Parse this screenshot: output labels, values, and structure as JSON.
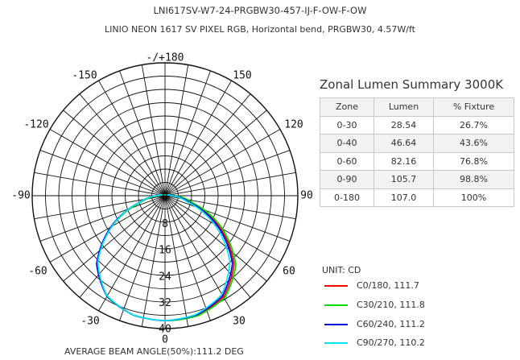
{
  "header": {
    "line1": "LNI617SV-W7-24-PRGBW30-457-IJ-F-OW-F-OW",
    "line2": "LINIO NEON 1617 SV PIXEL RGB, Horizontal bend, PRGBW30, 4.57W/ft"
  },
  "chart_data": [
    {
      "type": "polar",
      "angular_tick_labels": [
        "-/+180",
        "150",
        "120",
        "90",
        "60",
        "30",
        "0",
        "-30",
        "-60",
        "-90",
        "-120",
        "-150"
      ],
      "radial_tick_labels": [
        "0",
        "8",
        "16",
        "24",
        "32",
        "40"
      ],
      "radial_range": [
        0,
        40
      ],
      "unit": "UNIT: CD",
      "footer": "AVERAGE BEAM ANGLE(50%):111.2 DEG",
      "series": [
        {
          "name": "C0/180, 111.7",
          "color": "#ff0000",
          "shift": 0.8,
          "theta": [
            -120,
            -105,
            -90,
            -75,
            -60,
            -45,
            -30,
            -15,
            0,
            15,
            30,
            45,
            60,
            75,
            90,
            105,
            120
          ],
          "r": [
            0,
            0.5,
            2,
            7.5,
            18.5,
            29,
            35,
            37.2,
            37.6,
            37.2,
            35,
            29,
            18.5,
            7.5,
            2,
            0.5,
            0
          ]
        },
        {
          "name": "C30/210, 111.8",
          "color": "#00dd00",
          "shift": 1.6,
          "theta": [
            -120,
            -105,
            -90,
            -75,
            -60,
            -45,
            -30,
            -15,
            0,
            15,
            30,
            45,
            60,
            75,
            90,
            105,
            120
          ],
          "r": [
            0,
            0.5,
            2,
            7.8,
            19,
            29.5,
            35.3,
            37.3,
            37.6,
            37.3,
            35.3,
            29.5,
            19,
            7.8,
            2,
            0.5,
            0
          ]
        },
        {
          "name": "C60/240, 111.2",
          "color": "#0000dd",
          "shift": -0.6,
          "theta": [
            -120,
            -105,
            -90,
            -75,
            -60,
            -45,
            -30,
            -15,
            0,
            15,
            30,
            45,
            60,
            75,
            90,
            105,
            120
          ],
          "r": [
            0,
            0.5,
            2,
            7.4,
            18.3,
            28.8,
            34.8,
            37.1,
            37.6,
            37.1,
            34.8,
            28.8,
            18.3,
            7.4,
            2,
            0.5,
            0
          ]
        },
        {
          "name": "C90/270, 110.2",
          "color": "#00e5ff",
          "shift": -1.4,
          "theta": [
            -120,
            -105,
            -90,
            -75,
            -60,
            -45,
            -30,
            -15,
            0,
            15,
            30,
            45,
            60,
            75,
            90,
            105,
            120
          ],
          "r": [
            0,
            0.5,
            1.8,
            7,
            17.5,
            28,
            34.5,
            37,
            37.6,
            37,
            34.5,
            28,
            17.5,
            7,
            1.8,
            0.5,
            0
          ]
        }
      ]
    },
    {
      "type": "table",
      "title": "Zonal Lumen Summary 3000K",
      "columns": [
        "Zone",
        "Lumen",
        "% Fixture"
      ],
      "rows": [
        [
          "0-30",
          "28.54",
          "26.7%"
        ],
        [
          "0-40",
          "46.64",
          "43.6%"
        ],
        [
          "0-60",
          "82.16",
          "76.8%"
        ],
        [
          "0-90",
          "105.7",
          "98.8%"
        ],
        [
          "0-180",
          "107.0",
          "100%"
        ]
      ]
    }
  ]
}
